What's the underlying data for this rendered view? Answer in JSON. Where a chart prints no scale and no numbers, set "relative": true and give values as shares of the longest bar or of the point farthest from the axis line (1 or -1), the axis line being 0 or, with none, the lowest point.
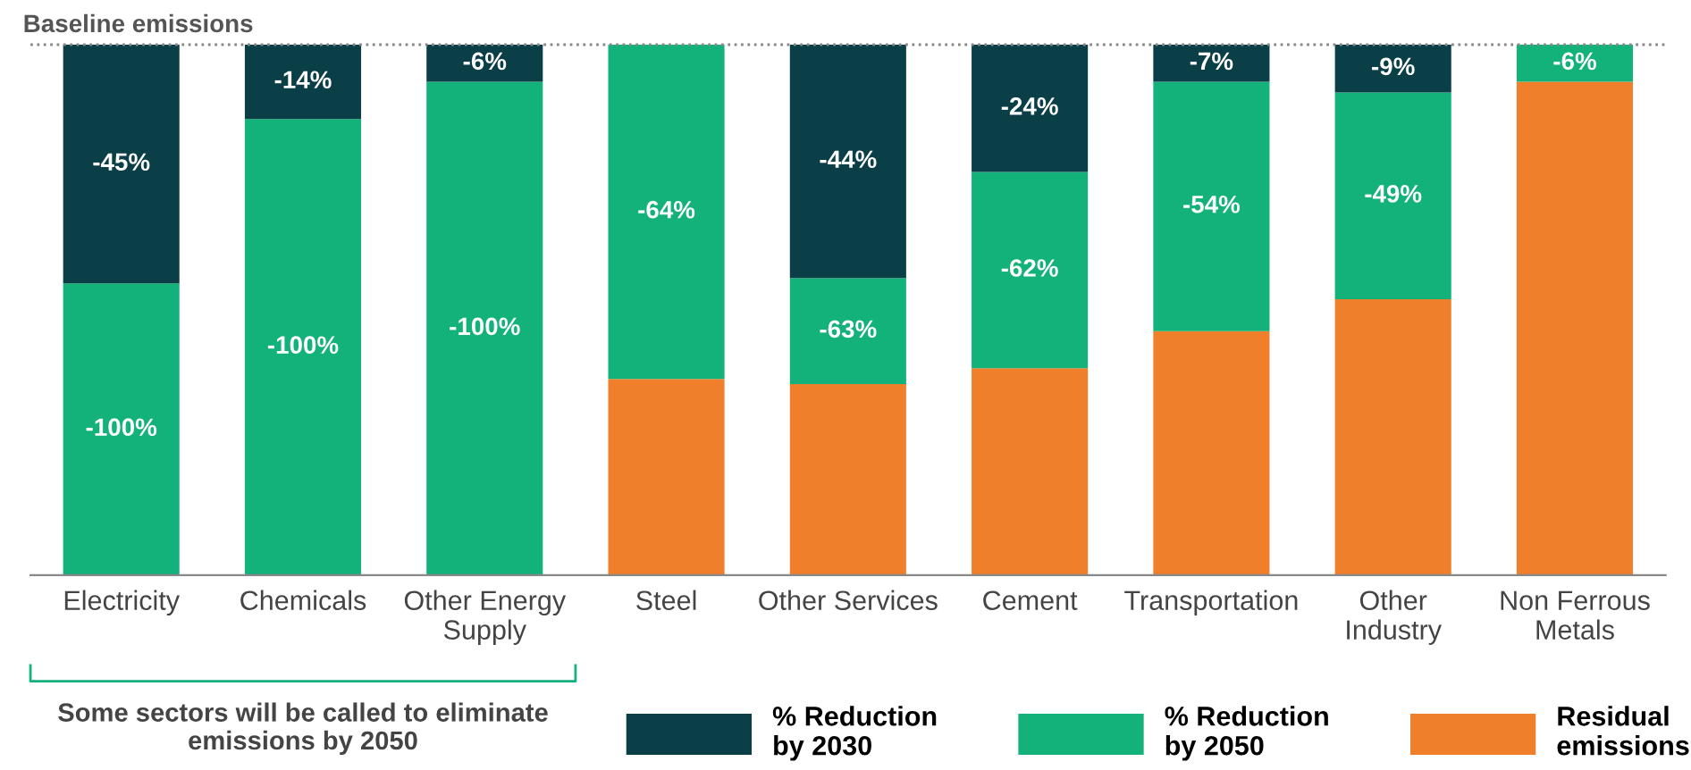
{
  "chart_data": {
    "type": "bar",
    "stacked": true,
    "relative": true,
    "categories": [
      "Electricity",
      "Chemicals",
      "Other Energy\nSupply",
      "Steel",
      "Other Services",
      "Cement",
      "Transportation",
      "Other\nIndustry",
      "Non Ferrous\nMetals"
    ],
    "series": [
      {
        "name": "Residual\nemissions",
        "color": "#f07f2c",
        "values": [
          0,
          0,
          0,
          0.37,
          0.36,
          0.39,
          0.46,
          0.52,
          0.93
        ]
      },
      {
        "name": "% Reduction\nby 2050",
        "color": "#12b27a",
        "values": [
          0.55,
          0.86,
          0.93,
          0.63,
          0.2,
          0.37,
          0.47,
          0.39,
          0.07
        ]
      },
      {
        "name": "% Reduction\nby 2030",
        "color": "#0b3f47",
        "values": [
          0.45,
          0.14,
          0.07,
          0,
          0.44,
          0.24,
          0.07,
          0.09,
          0
        ]
      }
    ],
    "ref_lines": [
      {
        "axis": "y",
        "value": 1,
        "label": "Baseline emissions",
        "line_style": "dotted",
        "color": "#888888"
      }
    ],
    "annotations": [
      "-100%",
      "-45%",
      "-100%",
      "-14%",
      "-100%",
      "-6%",
      "-64%",
      "-63%",
      "-44%",
      "-62%",
      "-24%",
      "-54%",
      "-7%",
      "-49%",
      "-9%",
      "-6%",
      "Some sectors will be called to eliminate\nemissions by 2050"
    ],
    "legend": "bottom",
    "grid": false
  }
}
